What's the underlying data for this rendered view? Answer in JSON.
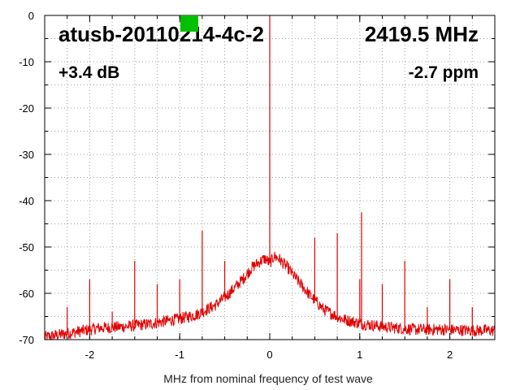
{
  "chart_data": {
    "type": "line",
    "title": "",
    "xlabel": "MHz from nominal frequency of test wave",
    "ylabel": "",
    "xlim": [
      -2.5,
      2.5
    ],
    "ylim": [
      -70,
      0
    ],
    "grid": true,
    "x_ticks": [
      -2,
      -1,
      0,
      1,
      2
    ],
    "y_ticks": [
      0,
      -10,
      -20,
      -30,
      -40,
      -50,
      -60,
      -70
    ],
    "series": [
      {
        "color": "#e00000",
        "baseline": {
          "x": [
            -2.5,
            -2.2,
            -1.9,
            -1.6,
            -1.3,
            -1.0,
            -0.8,
            -0.6,
            -0.45,
            -0.3,
            -0.2,
            -0.1,
            -0.05,
            0.0,
            0.05,
            0.1,
            0.2,
            0.3,
            0.45,
            0.6,
            0.8,
            1.0,
            1.3,
            1.6,
            1.9,
            2.2,
            2.5
          ],
          "y": [
            -69.5,
            -68.5,
            -67.5,
            -67.2,
            -66.5,
            -65.5,
            -64.5,
            -62.5,
            -60.0,
            -57.0,
            -54.5,
            -53.0,
            -52.5,
            -53.5,
            -52.0,
            -52.5,
            -54.5,
            -57.0,
            -60.5,
            -63.5,
            -65.5,
            -66.5,
            -67.3,
            -67.8,
            -67.8,
            -68.0,
            -68.0
          ]
        },
        "spurs": {
          "x": [
            -2.25,
            -2.0,
            -1.75,
            -1.5,
            -1.25,
            -1.0,
            -0.75,
            -0.5,
            0.0,
            0.5,
            0.75,
            1.0,
            1.02,
            1.25,
            1.5,
            1.75,
            2.0,
            2.25
          ],
          "y": [
            -63,
            -57,
            -64,
            -53,
            -58,
            -57,
            -46.5,
            -53,
            0,
            -48,
            -47,
            -57,
            -42.5,
            -58,
            -53,
            -63,
            -57,
            -63
          ]
        }
      }
    ],
    "annotations": {
      "device": "atusb-20110214-4c-2",
      "frequency": "2419.5 MHz",
      "gain": "+3.4 dB",
      "offset": "-2.7 ppm"
    },
    "marker": {
      "color": "#00c000",
      "x": -0.9,
      "y": 1
    }
  }
}
